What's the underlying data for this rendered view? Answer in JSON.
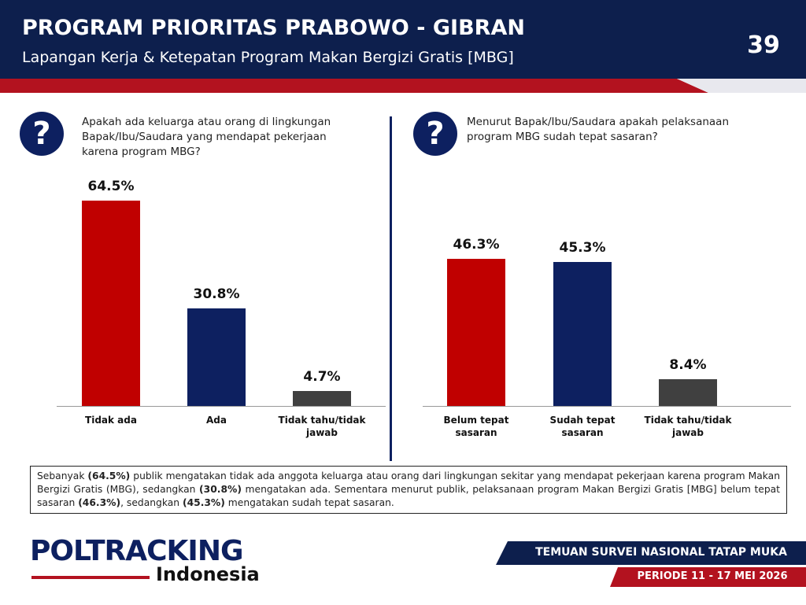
{
  "header": {
    "title": "PROGRAM PRIORITAS PRABOWO - GIBRAN",
    "subtitle": "Lapangan Kerja & Ketepatan Program Makan Bergizi Gratis [MBG]",
    "page_number": "39"
  },
  "chart_data": [
    {
      "type": "bar",
      "question": "Apakah ada keluarga atau orang di lingkungan Bapak/Ibu/Saudara yang mendapat pekerjaan karena program MBG?",
      "categories": [
        "Tidak ada",
        "Ada",
        "Tidak tahu/tidak jawab"
      ],
      "values": [
        64.5,
        30.8,
        4.7
      ],
      "value_labels": [
        "64.5%",
        "30.8%",
        "4.7%"
      ],
      "colors": [
        "#c00000",
        "#0d2060",
        "#404040"
      ]
    },
    {
      "type": "bar",
      "question": "Menurut Bapak/Ibu/Saudara apakah pelaksanaan program MBG sudah tepat sasaran?",
      "categories": [
        "Belum tepat sasaran",
        "Sudah tepat sasaran",
        "Tidak tahu/tidak jawab"
      ],
      "values": [
        46.3,
        45.3,
        8.4
      ],
      "value_labels": [
        "46.3%",
        "45.3%",
        "8.4%"
      ],
      "colors": [
        "#c00000",
        "#0d2060",
        "#404040"
      ]
    }
  ],
  "summary": [
    {
      "text": "Sebanyak ",
      "bold": false
    },
    {
      "text": "(64.5%)",
      "bold": true
    },
    {
      "text": " publik mengatakan tidak ada anggota keluarga atau orang dari lingkungan sekitar yang mendapat pekerjaan karena program Makan Bergizi Gratis (MBG), sedangkan ",
      "bold": false
    },
    {
      "text": "(30.8%)",
      "bold": true
    },
    {
      "text": " mengatakan ada. Sementara menurut publik, pelaksanaan program Makan Bergizi Gratis [MBG] belum tepat sasaran ",
      "bold": false
    },
    {
      "text": "(46.3%)",
      "bold": true
    },
    {
      "text": ", sedangkan ",
      "bold": false
    },
    {
      "text": "(45.3%)",
      "bold": true
    },
    {
      "text": " mengatakan sudah tepat sasaran.",
      "bold": false
    }
  ],
  "logo": {
    "name": "POLTRACKING",
    "country": "Indonesia"
  },
  "footer": {
    "survey": "TEMUAN SURVEI NASIONAL TATAP MUKA",
    "period": "PERIODE 11 - 17 MEI 2026"
  }
}
